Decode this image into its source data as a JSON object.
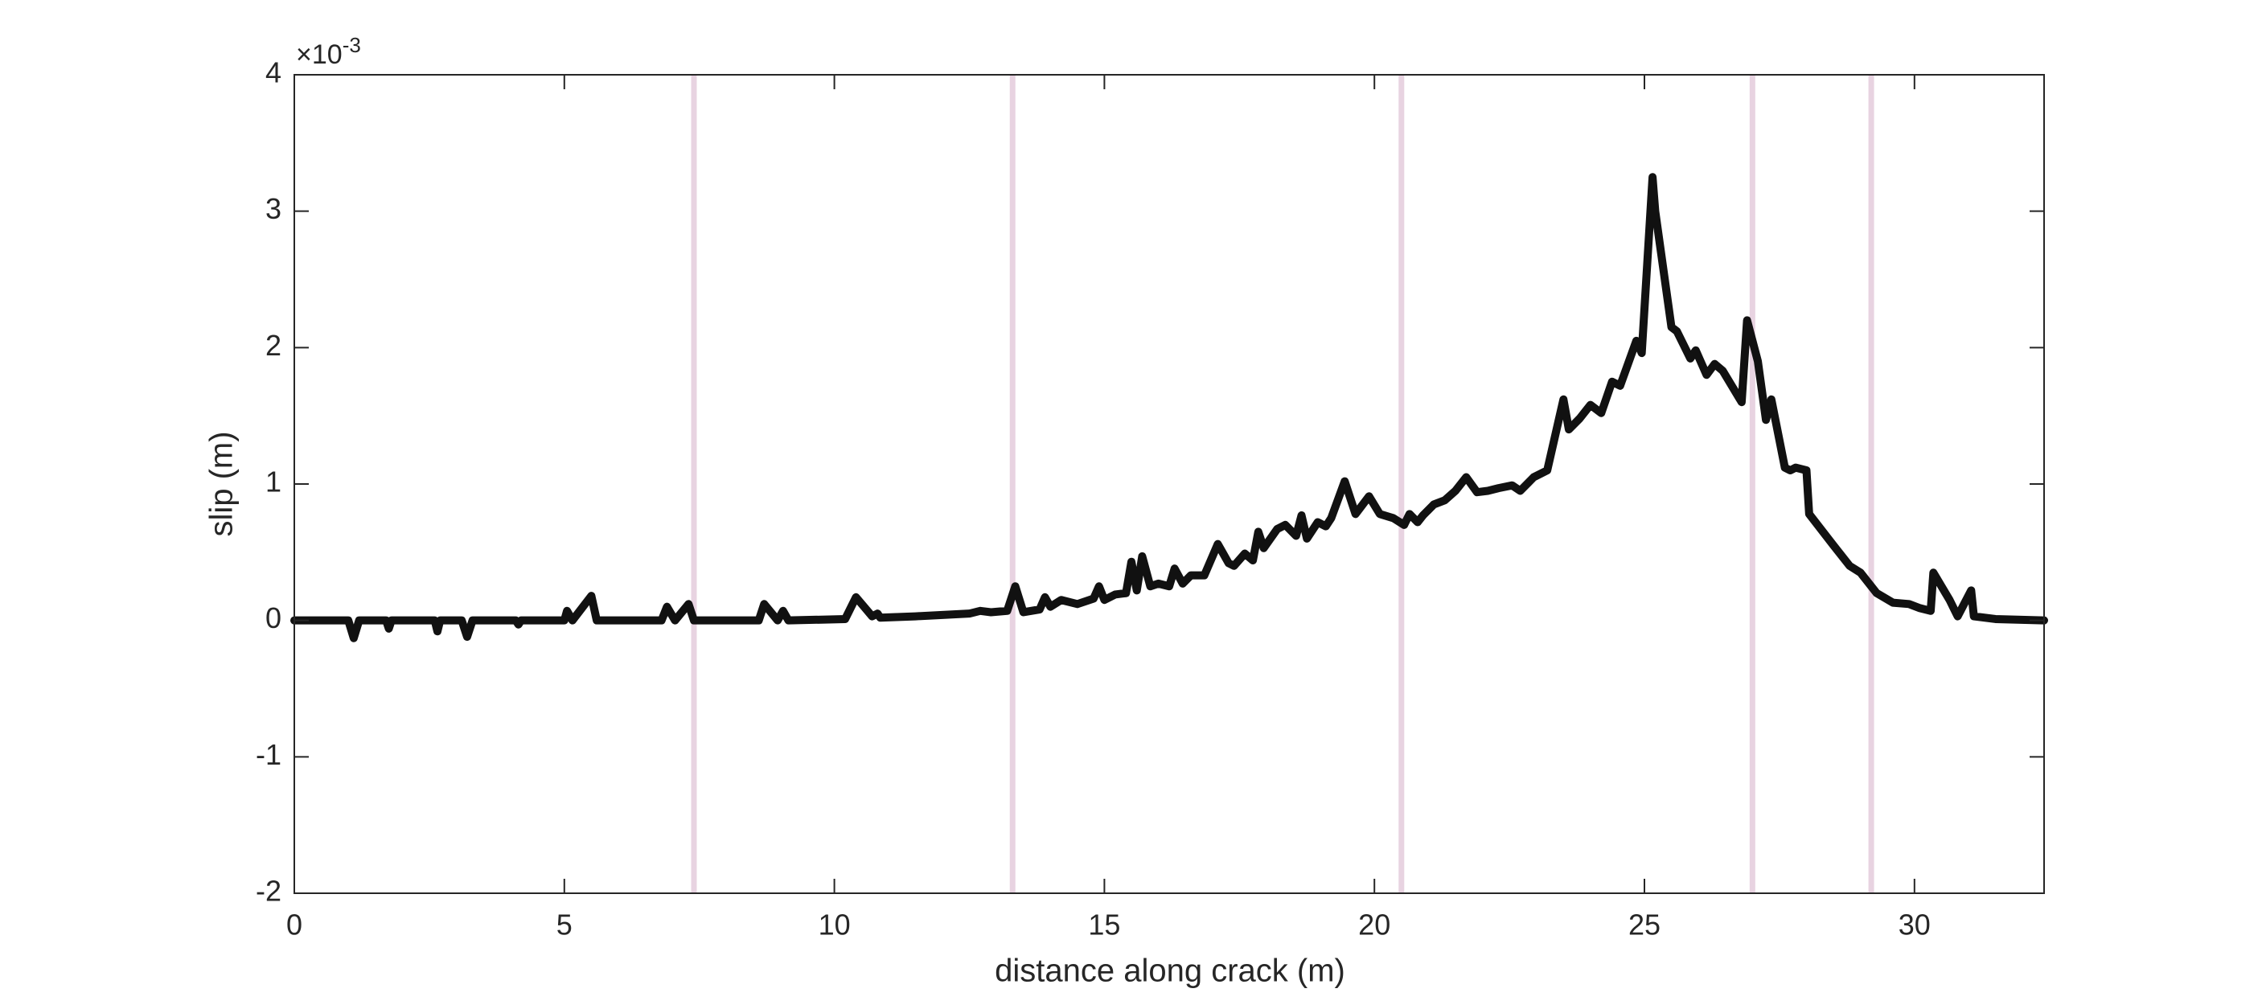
{
  "chart_data": {
    "type": "line",
    "xlabel": "distance along crack (m)",
    "ylabel": "slip (m)",
    "y_multiplier_base": "×10",
    "y_multiplier_exponent": "-3",
    "xlim": [
      0,
      32.4
    ],
    "ylim": [
      -2,
      4
    ],
    "xticks": [
      0,
      5,
      10,
      15,
      20,
      25,
      30
    ],
    "yticks": [
      -2,
      -1,
      0,
      1,
      2,
      3,
      4
    ],
    "grid": false,
    "vlines": [
      7.4,
      13.3,
      20.5,
      27.0,
      29.2
    ],
    "vline_color": "#e8d3e1",
    "series": [
      {
        "color": "#111111",
        "x": [
          0,
          1,
          1.1,
          1.2,
          1.7,
          1.75,
          1.8,
          2.6,
          2.65,
          2.7,
          3.1,
          3.2,
          3.3,
          4.1,
          4.15,
          4.2,
          5.0,
          5.05,
          5.15,
          5.5,
          5.6,
          6.8,
          6.9,
          7.05,
          7.3,
          7.4,
          8.6,
          8.7,
          8.95,
          9.05,
          9.15,
          10.2,
          10.4,
          10.7,
          10.8,
          10.85,
          11.5,
          12.0,
          12.5,
          12.7,
          12.9,
          13.2,
          13.35,
          13.5,
          13.8,
          13.9,
          14.0,
          14.2,
          14.5,
          14.8,
          14.9,
          15.0,
          15.2,
          15.4,
          15.5,
          15.6,
          15.7,
          15.85,
          16.0,
          16.2,
          16.3,
          16.45,
          16.6,
          16.85,
          17.1,
          17.3,
          17.4,
          17.6,
          17.75,
          17.85,
          17.95,
          18.2,
          18.35,
          18.55,
          18.65,
          18.75,
          18.95,
          19.1,
          19.2,
          19.45,
          19.65,
          19.9,
          20.1,
          20.35,
          20.55,
          20.65,
          20.8,
          20.9,
          21.1,
          21.3,
          21.5,
          21.7,
          21.9,
          22.1,
          22.3,
          22.55,
          22.7,
          22.95,
          23.2,
          23.5,
          23.6,
          23.8,
          24.0,
          24.2,
          24.4,
          24.55,
          24.85,
          24.95,
          25.15,
          25.2,
          25.5,
          25.6,
          25.85,
          25.95,
          26.15,
          26.3,
          26.45,
          26.8,
          26.9,
          27.1,
          27.25,
          27.35,
          27.6,
          27.7,
          27.8,
          28.0,
          28.05,
          28.5,
          28.8,
          29.0,
          29.3,
          29.6,
          29.9,
          30.1,
          30.3,
          30.35,
          30.65,
          30.8,
          31.05,
          31.1,
          31.5,
          32.4
        ],
        "values": [
          0,
          0,
          -0.13,
          0,
          0,
          -0.06,
          0,
          0,
          -0.08,
          0,
          0,
          -0.12,
          0,
          0,
          -0.03,
          0,
          0,
          0.07,
          0,
          0.18,
          0,
          0,
          0.1,
          0,
          0.12,
          0,
          0,
          0.12,
          0,
          0.07,
          0,
          0.01,
          0.17,
          0.03,
          0.05,
          0.02,
          0.03,
          0.04,
          0.05,
          0.07,
          0.06,
          0.07,
          0.25,
          0.06,
          0.08,
          0.17,
          0.1,
          0.15,
          0.12,
          0.16,
          0.25,
          0.15,
          0.19,
          0.2,
          0.43,
          0.22,
          0.47,
          0.25,
          0.27,
          0.25,
          0.38,
          0.27,
          0.33,
          0.33,
          0.56,
          0.42,
          0.4,
          0.49,
          0.44,
          0.65,
          0.53,
          0.67,
          0.7,
          0.62,
          0.77,
          0.6,
          0.72,
          0.69,
          0.75,
          1.02,
          0.78,
          0.91,
          0.78,
          0.75,
          0.7,
          0.78,
          0.72,
          0.77,
          0.85,
          0.88,
          0.95,
          1.05,
          0.94,
          0.95,
          0.97,
          0.99,
          0.95,
          1.05,
          1.1,
          1.62,
          1.4,
          1.48,
          1.58,
          1.52,
          1.75,
          1.72,
          2.05,
          1.96,
          3.25,
          3.0,
          2.15,
          2.12,
          1.92,
          1.98,
          1.8,
          1.88,
          1.83,
          1.6,
          2.2,
          1.9,
          1.47,
          1.62,
          1.12,
          1.1,
          1.12,
          1.1,
          0.78,
          0.55,
          0.4,
          0.35,
          0.2,
          0.13,
          0.12,
          0.09,
          0.07,
          0.35,
          0.15,
          0.03,
          0.22,
          0.03,
          0.01,
          0
        ]
      }
    ]
  }
}
